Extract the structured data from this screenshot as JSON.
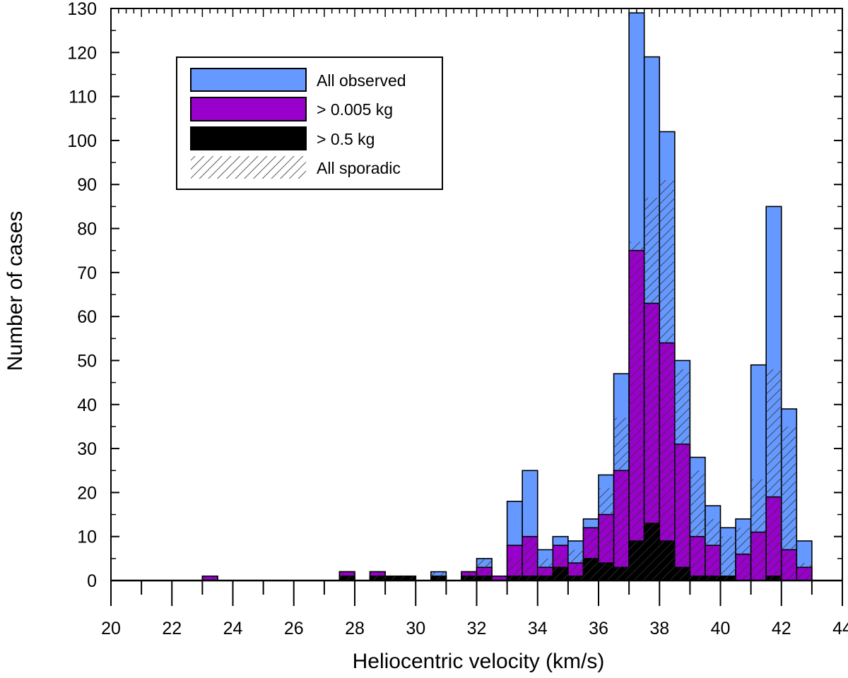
{
  "chart_data": {
    "type": "bar",
    "xlabel": "Heliocentric velocity (km/s)",
    "ylabel": "Number of cases",
    "xlim": [
      20,
      44
    ],
    "ylim": [
      0,
      130
    ],
    "bin_width": 0.5,
    "x_ticks": [
      20,
      22,
      24,
      26,
      28,
      30,
      32,
      34,
      36,
      38,
      40,
      42,
      44
    ],
    "y_ticks": [
      0,
      10,
      20,
      30,
      40,
      50,
      60,
      70,
      80,
      90,
      100,
      110,
      120,
      130
    ],
    "legend_position": "top-left",
    "grid": false,
    "colors": {
      "all_observed": "#6699ff",
      "over_0005": "#9900cc",
      "over_05": "#000000",
      "sporadic_hatch": "#333333"
    },
    "bin_starts": [
      23,
      27.5,
      28.5,
      29,
      29.5,
      30.5,
      31.5,
      32,
      32.5,
      33,
      33.5,
      34,
      34.5,
      35,
      35.5,
      36,
      36.5,
      37,
      37.5,
      38,
      38.5,
      39,
      39.5,
      40,
      40.5,
      41,
      41.5,
      42,
      42.5
    ],
    "series": [
      {
        "name": "All observed",
        "values": [
          1,
          2,
          2,
          1,
          1,
          2,
          2,
          5,
          1,
          18,
          25,
          7,
          10,
          9,
          14,
          24,
          47,
          129,
          119,
          102,
          50,
          28,
          17,
          12,
          14,
          49,
          85,
          39,
          9
        ]
      },
      {
        "name": "> 0.005 kg",
        "values": [
          1,
          2,
          2,
          1,
          1,
          1,
          2,
          3,
          1,
          8,
          10,
          3,
          8,
          4,
          12,
          15,
          25,
          75,
          63,
          54,
          31,
          10,
          8,
          1,
          6,
          11,
          19,
          7,
          3
        ]
      },
      {
        "name": "> 0.5 kg",
        "values": [
          0,
          1,
          1,
          1,
          1,
          1,
          1,
          1,
          0,
          1,
          1,
          1,
          3,
          1,
          5,
          4,
          3,
          9,
          13,
          9,
          3,
          1,
          1,
          1,
          0,
          0,
          1,
          0,
          0
        ]
      },
      {
        "name": "All sporadic",
        "values": [
          1,
          2,
          2,
          1,
          1,
          2,
          2,
          5,
          1,
          5,
          10,
          5,
          6,
          7,
          12,
          21,
          37,
          77,
          87,
          91,
          48,
          25,
          14,
          10,
          12,
          23,
          48,
          35,
          4
        ]
      }
    ]
  }
}
